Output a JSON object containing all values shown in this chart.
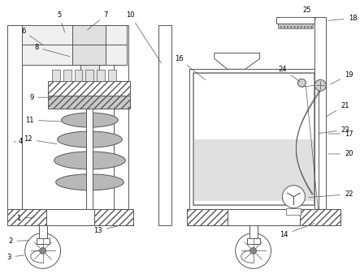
{
  "bg_color": "#ffffff",
  "line_color": "#555555",
  "figsize": [
    4.43,
    3.43
  ],
  "dpi": 100,
  "label_color": "#000000",
  "label_fs": 6.0,
  "lw": 0.7
}
